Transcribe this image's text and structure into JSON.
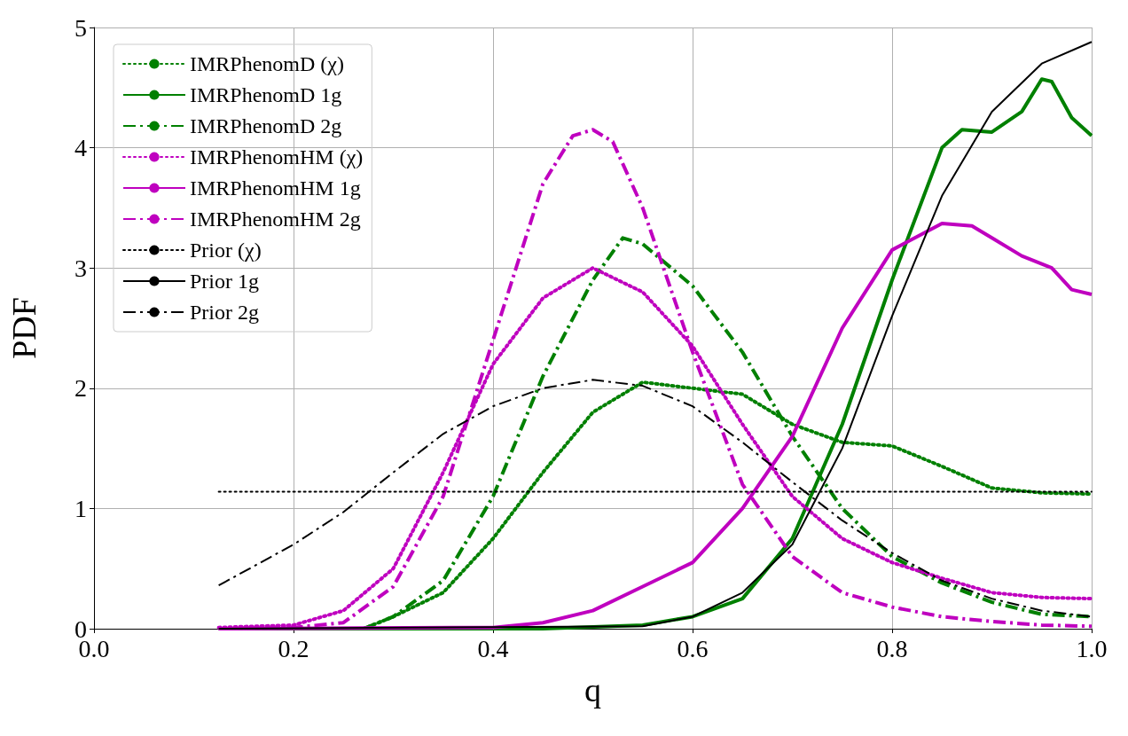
{
  "chart_data": {
    "type": "line",
    "xlabel": "q",
    "ylabel": "PDF",
    "xlim": [
      0,
      1
    ],
    "ylim": [
      0,
      5
    ],
    "xticks": [
      {
        "value": 0,
        "label": "0.0"
      },
      0.2,
      0.4,
      0.6,
      0.8,
      {
        "value": 1,
        "label": "1.0"
      }
    ],
    "yticks": [
      0,
      1,
      2,
      3,
      4,
      5
    ],
    "grid": true,
    "legend": "top left",
    "marker": "none",
    "series": [
      {
        "name": "IMRPhenomD (χ)",
        "color": "#008000",
        "line_style": "dotted",
        "x": [
          0.27,
          0.3,
          0.35,
          0.4,
          0.45,
          0.5,
          0.55,
          0.6,
          0.65,
          0.7,
          0.75,
          0.8,
          0.85,
          0.9,
          0.95,
          1.0
        ],
        "values": [
          0,
          0.1,
          0.3,
          0.75,
          1.3,
          1.8,
          2.05,
          2.0,
          1.95,
          1.7,
          1.55,
          1.52,
          1.35,
          1.17,
          1.13,
          1.12
        ]
      },
      {
        "name": "IMRPhenomD 1g",
        "color": "#008000",
        "line_style": "solid",
        "x": [
          0.125,
          0.45,
          0.55,
          0.6,
          0.65,
          0.7,
          0.75,
          0.8,
          0.85,
          0.87,
          0.9,
          0.93,
          0.95,
          0.96,
          0.98,
          1.0
        ],
        "values": [
          0,
          0,
          0.03,
          0.1,
          0.25,
          0.75,
          1.7,
          2.9,
          4.0,
          4.15,
          4.13,
          4.3,
          4.57,
          4.55,
          4.25,
          4.1
        ]
      },
      {
        "name": "IMRPhenomD 2g",
        "color": "#008000",
        "line_style": "dashed",
        "x": [
          0.27,
          0.3,
          0.35,
          0.4,
          0.45,
          0.5,
          0.53,
          0.55,
          0.6,
          0.65,
          0.7,
          0.75,
          0.8,
          0.85,
          0.9,
          0.95,
          1.0
        ],
        "values": [
          0,
          0.1,
          0.4,
          1.1,
          2.1,
          2.9,
          3.25,
          3.2,
          2.85,
          2.3,
          1.6,
          1.0,
          0.6,
          0.38,
          0.22,
          0.12,
          0.1
        ]
      },
      {
        "name": "IMRPhenomHM (χ)",
        "color": "#bf00bf",
        "line_style": "dotted",
        "x": [
          0.125,
          0.2,
          0.25,
          0.3,
          0.35,
          0.4,
          0.45,
          0.5,
          0.55,
          0.6,
          0.65,
          0.7,
          0.75,
          0.8,
          0.85,
          0.9,
          0.95,
          1.0
        ],
        "values": [
          0.01,
          0.03,
          0.15,
          0.5,
          1.3,
          2.2,
          2.75,
          3.0,
          2.8,
          2.35,
          1.7,
          1.1,
          0.75,
          0.55,
          0.42,
          0.3,
          0.26,
          0.25
        ]
      },
      {
        "name": "IMRPhenomHM 1g",
        "color": "#bf00bf",
        "line_style": "solid",
        "x": [
          0.125,
          0.4,
          0.45,
          0.5,
          0.55,
          0.6,
          0.65,
          0.7,
          0.75,
          0.8,
          0.85,
          0.88,
          0.9,
          0.93,
          0.96,
          0.98,
          1.0
        ],
        "values": [
          0,
          0.01,
          0.05,
          0.15,
          0.35,
          0.55,
          1.0,
          1.6,
          2.5,
          3.15,
          3.37,
          3.35,
          3.25,
          3.1,
          3.0,
          2.82,
          2.78
        ]
      },
      {
        "name": "IMRPhenomHM 2g",
        "color": "#bf00bf",
        "line_style": "dashed",
        "x": [
          0.125,
          0.2,
          0.25,
          0.3,
          0.35,
          0.4,
          0.45,
          0.48,
          0.5,
          0.52,
          0.55,
          0.6,
          0.65,
          0.7,
          0.75,
          0.8,
          0.85,
          0.9,
          0.95,
          1.0
        ],
        "values": [
          0,
          0.01,
          0.05,
          0.35,
          1.1,
          2.4,
          3.7,
          4.1,
          4.15,
          4.05,
          3.5,
          2.3,
          1.2,
          0.6,
          0.3,
          0.18,
          0.1,
          0.06,
          0.03,
          0.02
        ]
      },
      {
        "name": "Prior (χ)",
        "color": "#000000",
        "line_style": "dotted",
        "x": [
          0.125,
          1.0
        ],
        "values": [
          1.14,
          1.14
        ]
      },
      {
        "name": "Prior 1g",
        "color": "#000000",
        "line_style": "solid",
        "x": [
          0.125,
          0.55,
          0.6,
          0.65,
          0.7,
          0.75,
          0.8,
          0.85,
          0.9,
          0.95,
          1.0
        ],
        "values": [
          0,
          0.02,
          0.1,
          0.3,
          0.7,
          1.5,
          2.6,
          3.6,
          4.3,
          4.7,
          4.88
        ]
      },
      {
        "name": "Prior 2g",
        "color": "#000000",
        "line_style": "dashed",
        "x": [
          0.125,
          0.2,
          0.25,
          0.3,
          0.35,
          0.4,
          0.45,
          0.5,
          0.55,
          0.6,
          0.65,
          0.7,
          0.75,
          0.8,
          0.85,
          0.9,
          0.95,
          1.0
        ],
        "values": [
          0.36,
          0.7,
          0.97,
          1.3,
          1.62,
          1.85,
          2.0,
          2.07,
          2.02,
          1.85,
          1.55,
          1.22,
          0.9,
          0.63,
          0.4,
          0.25,
          0.15,
          0.1
        ]
      }
    ]
  }
}
